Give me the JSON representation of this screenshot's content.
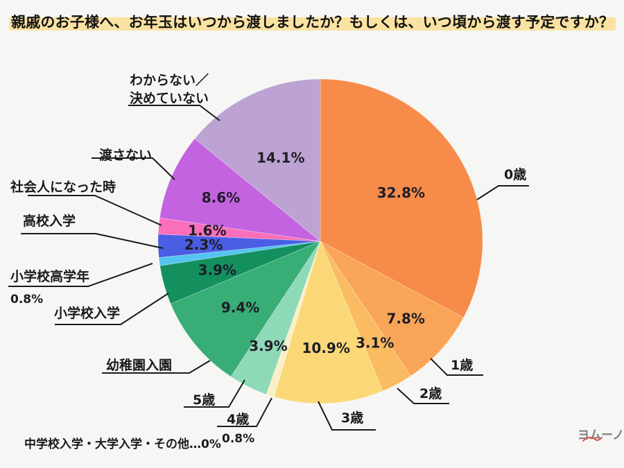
{
  "title": "親戚のお子様へ、お年玉はいつから渡しましたか？もしくは、いつ頃から渡す予定ですか？",
  "footnote": "中学校入学・大学入学・その他…0%",
  "logo": {
    "text": "ヨムーノ"
  },
  "annotations": {
    "unknown_line1": "わからない／",
    "unknown_line2": "決めていない",
    "elementary_upper_pct": "0.8%",
    "age4_pct": "0.8%"
  },
  "colors": {
    "page_background": "#f6f6f4",
    "title_highlight": "#fae2a2",
    "label_text": "#1a1a1a",
    "percent_text": "#1d1d27",
    "callout_line": "#1a1a1a",
    "logo_text": "#7e7e7e",
    "logo_accent": "#e05348"
  },
  "chart_data": {
    "type": "pie",
    "title": "親戚のお子様へ、お年玉はいつから渡しましたか？もしくは、いつ頃から渡す予定ですか？",
    "unit": "%",
    "start_angle_deg": 0,
    "direction": "clockwise",
    "legend_position": "outside-callouts",
    "slices": [
      {
        "label": "0歳",
        "value": 32.8,
        "color": "#f78b4a"
      },
      {
        "label": "1歳",
        "value": 7.8,
        "color": "#f9a557"
      },
      {
        "label": "2歳",
        "value": 3.1,
        "color": "#fabb62"
      },
      {
        "label": "3歳",
        "value": 10.9,
        "color": "#fad878"
      },
      {
        "label": "4歳",
        "value": 0.8,
        "color": "#fbefc6"
      },
      {
        "label": "5歳",
        "value": 3.9,
        "color": "#8ed9b8"
      },
      {
        "label": "幼稚園入園",
        "value": 9.4,
        "color": "#38ad76"
      },
      {
        "label": "小学校入学",
        "value": 3.9,
        "color": "#14905f"
      },
      {
        "label": "小学校高学年",
        "value": 0.8,
        "color": "#55c4f1"
      },
      {
        "label": "高校入学",
        "value": 2.3,
        "color": "#4a5ee4"
      },
      {
        "label": "社会人になった時",
        "value": 1.6,
        "color": "#fb6eb9"
      },
      {
        "label": "渡さない",
        "value": 8.6,
        "color": "#c463e0"
      },
      {
        "label": "わからない／決めていない",
        "value": 14.1,
        "color": "#bda3d3"
      }
    ]
  }
}
